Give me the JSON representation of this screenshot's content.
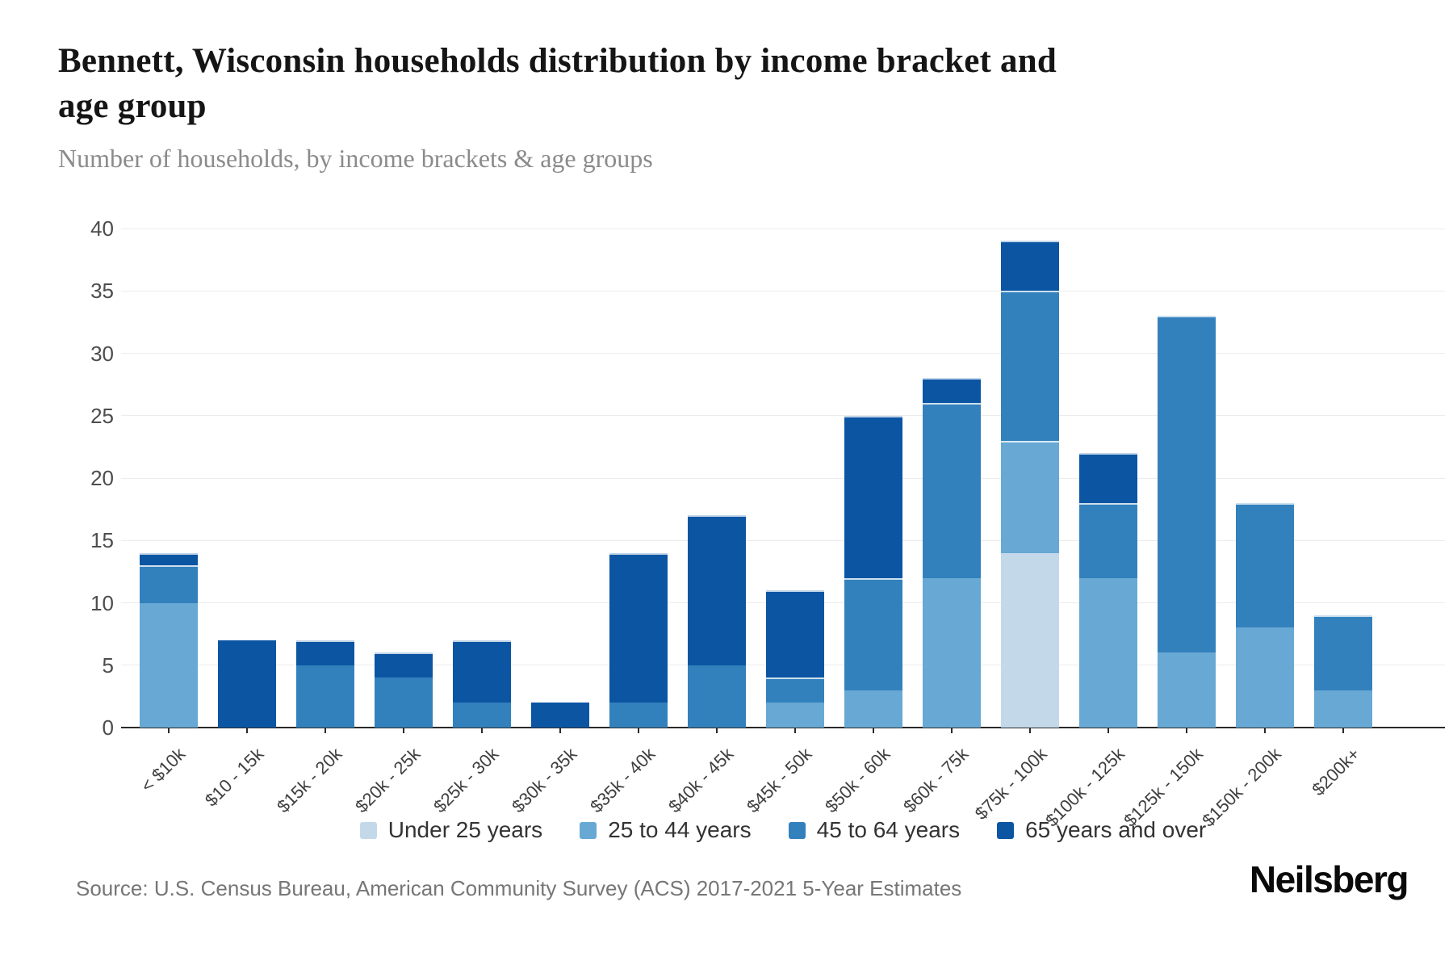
{
  "title": {
    "line1": "Bennett, Wisconsin households distribution by income bracket and",
    "line2": "age group",
    "full": "Bennett, Wisconsin households distribution by income bracket and age group"
  },
  "subtitle": "Number of households, by income brackets & age groups",
  "source": "Source: U.S. Census Bureau, American Community Survey (ACS) 2017-2021 5-Year Estimates",
  "logo": "Neilsberg",
  "colors": {
    "under_25": "#c3d9ea",
    "25_to_44": "#68a8d4",
    "45_to_64": "#3381bc",
    "65_and_over": "#0b55a3",
    "gridline": "#ececec",
    "axis": "#2a2a2a"
  },
  "chart_data": {
    "type": "bar",
    "stacked": true,
    "title": "Bennett, Wisconsin households distribution by income bracket and age group",
    "subtitle": "Number of households, by income brackets & age groups",
    "xlabel": "",
    "ylabel": "Number of households",
    "ylim": [
      0,
      40
    ],
    "yticks": [
      0,
      5,
      10,
      15,
      20,
      25,
      30,
      35,
      40
    ],
    "grid": true,
    "legend_position": "bottom",
    "categories": [
      "< $10k",
      "$10 - 15k",
      "$15k - 20k",
      "$20k - 25k",
      "$25k - 30k",
      "$30k - 35k",
      "$35k - 40k",
      "$40k - 45k",
      "$45k - 50k",
      "$50k - 60k",
      "$60k - 75k",
      "$75k - 100k",
      "$100k - 125k",
      "$125k - 150k",
      "$150k - 200k",
      "$200k+"
    ],
    "series": [
      {
        "name": "Under 25 years",
        "color": "#c3d9ea",
        "values": [
          0,
          0,
          0,
          0,
          0,
          0,
          0,
          0,
          0,
          0,
          0,
          14,
          0,
          0,
          0,
          0
        ]
      },
      {
        "name": "25 to 44 years",
        "color": "#68a8d4",
        "values": [
          10,
          0,
          0,
          0,
          0,
          0,
          0,
          0,
          2,
          3,
          12,
          9,
          12,
          6,
          8,
          3
        ]
      },
      {
        "name": "45 to 64 years",
        "color": "#3381bc",
        "values": [
          3,
          0,
          5,
          4,
          2,
          0,
          2,
          5,
          2,
          9,
          14,
          12,
          6,
          27,
          10,
          6
        ]
      },
      {
        "name": "65 years and over",
        "color": "#0b55a3",
        "values": [
          1,
          7,
          2,
          2,
          5,
          2,
          12,
          12,
          7,
          13,
          2,
          4,
          4,
          0,
          0,
          0
        ]
      }
    ],
    "totals": [
      14,
      7,
      7,
      6,
      7,
      2,
      14,
      17,
      11,
      25,
      28,
      39,
      22,
      33,
      18,
      9
    ]
  }
}
